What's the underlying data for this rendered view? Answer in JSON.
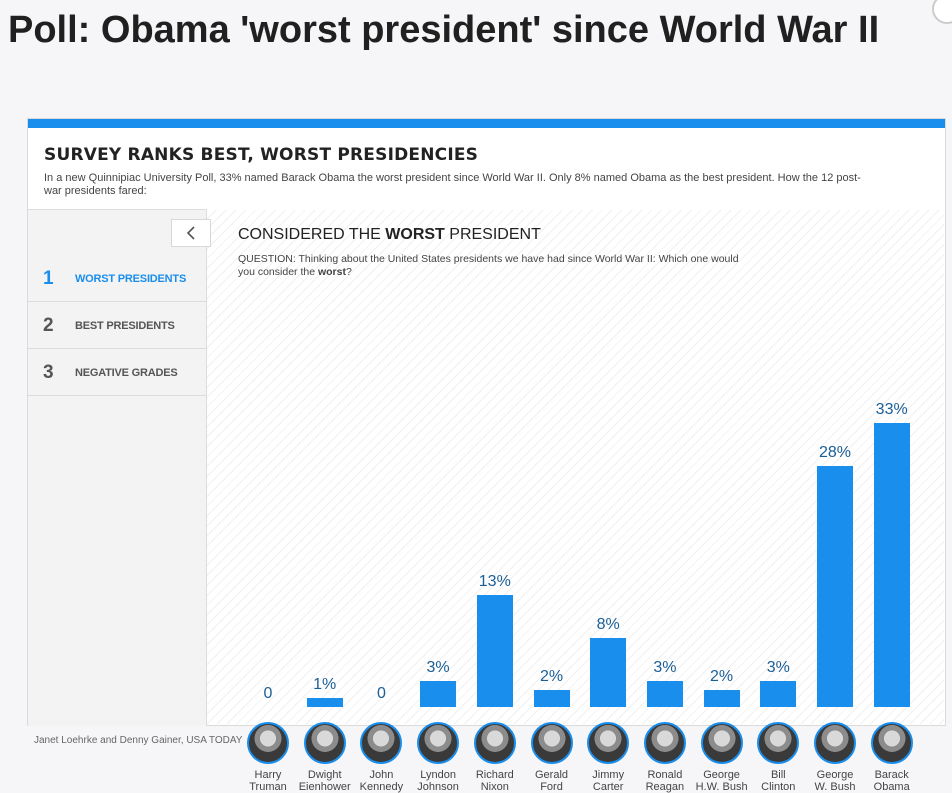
{
  "headline": "Poll: Obama 'worst president' since World War II",
  "card": {
    "title": "SURVEY RANKS BEST, WORST PRESIDENCIES",
    "description": "In a new Quinnipiac University Poll, 33% named Barack Obama the worst president since World War II. Only 8% named Obama as the best president. How the 12 post-war presidents fared:"
  },
  "sidebar": {
    "back_icon": "chevron-left-icon",
    "items": [
      {
        "num": "1",
        "label": "WORST PRESIDENTS",
        "active": true
      },
      {
        "num": "2",
        "label": "BEST PRESIDENTS",
        "active": false
      },
      {
        "num": "3",
        "label": "NEGATIVE GRADES",
        "active": false
      }
    ]
  },
  "chart": {
    "title_prefix": "CONSIDERED THE ",
    "title_bold": "WORST",
    "title_suffix": " PRESIDENT",
    "question_prefix": "QUESTION: Thinking about the United States presidents we have had since World War II: Which one would you consider the ",
    "question_bold": "worst",
    "question_suffix": "?"
  },
  "chart_data": {
    "type": "bar",
    "title": "CONSIDERED THE WORST PRESIDENT",
    "categories": [
      [
        "Harry",
        "Truman"
      ],
      [
        "Dwight",
        "Eienhower"
      ],
      [
        "John",
        "Kennedy"
      ],
      [
        "Lyndon",
        "Johnson"
      ],
      [
        "Richard",
        "Nixon"
      ],
      [
        "Gerald",
        "Ford"
      ],
      [
        "Jimmy",
        "Carter"
      ],
      [
        "Ronald",
        "Reagan"
      ],
      [
        "George",
        "H.W. Bush"
      ],
      [
        "Bill",
        "Clinton"
      ],
      [
        "George",
        "W. Bush"
      ],
      [
        "Barack",
        "Obama"
      ]
    ],
    "values": [
      0,
      1,
      0,
      3,
      13,
      2,
      8,
      3,
      2,
      3,
      28,
      33
    ],
    "value_labels": [
      "0",
      "1%",
      "0",
      "3%",
      "13%",
      "2%",
      "8%",
      "3%",
      "2%",
      "3%",
      "28%",
      "33%"
    ],
    "ylim": [
      0,
      33
    ],
    "grid": false,
    "bar_color": "#1a8eec",
    "label_color": "#1a5e96"
  },
  "credit": "Janet Loehrke and Denny Gainer, USA TODAY",
  "colors": {
    "accent": "#1a8eec"
  }
}
